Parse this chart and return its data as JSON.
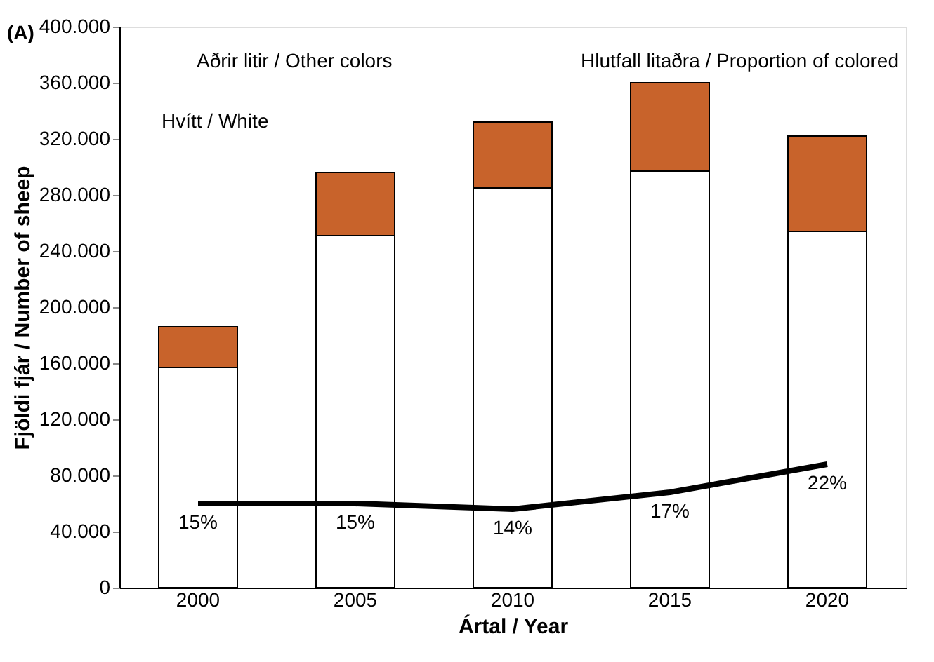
{
  "chart_data": {
    "type": "bar",
    "stacked": true,
    "xlabel": "Ártal / Year",
    "ylabel": "Fjöldi fjár / Number of sheep",
    "categories": [
      "2000",
      "2005",
      "2010",
      "2015",
      "2020"
    ],
    "series": [
      {
        "color": "#ffffff",
        "values": [
          157000,
          251000,
          285000,
          297000,
          254000
        ]
      },
      {
        "color": "#c8632b",
        "values": [
          29000,
          45000,
          47000,
          63000,
          68000
        ]
      },
      {
        "type": "line",
        "axis": "y2",
        "color": "#000000",
        "values": [
          15,
          15,
          14,
          17,
          22
        ],
        "value_labels": [
          "15%",
          "15%",
          "14%",
          "17%",
          "22%"
        ]
      }
    ],
    "ylim": [
      0,
      400000
    ],
    "yticks": [
      {
        "value": 0,
        "label": "0"
      },
      {
        "value": 40000,
        "label": "40.000"
      },
      {
        "value": 80000,
        "label": "80.000"
      },
      {
        "value": 120000,
        "label": "120.000"
      },
      {
        "value": 160000,
        "label": "160.000"
      },
      {
        "value": 200000,
        "label": "200.000"
      },
      {
        "value": 240000,
        "label": "240.000"
      },
      {
        "value": 280000,
        "label": "280.000"
      },
      {
        "value": 320000,
        "label": "320.000"
      },
      {
        "value": 360000,
        "label": "360.000"
      },
      {
        "value": 400000,
        "label": "400.000"
      }
    ],
    "y2lim": [
      0,
      100
    ],
    "annotations": [
      "(A)",
      "Hvítt / White",
      "Aðrir litir / Other colors",
      "Hlutfall litaðra / Proportion of colored"
    ],
    "grid": false
  }
}
